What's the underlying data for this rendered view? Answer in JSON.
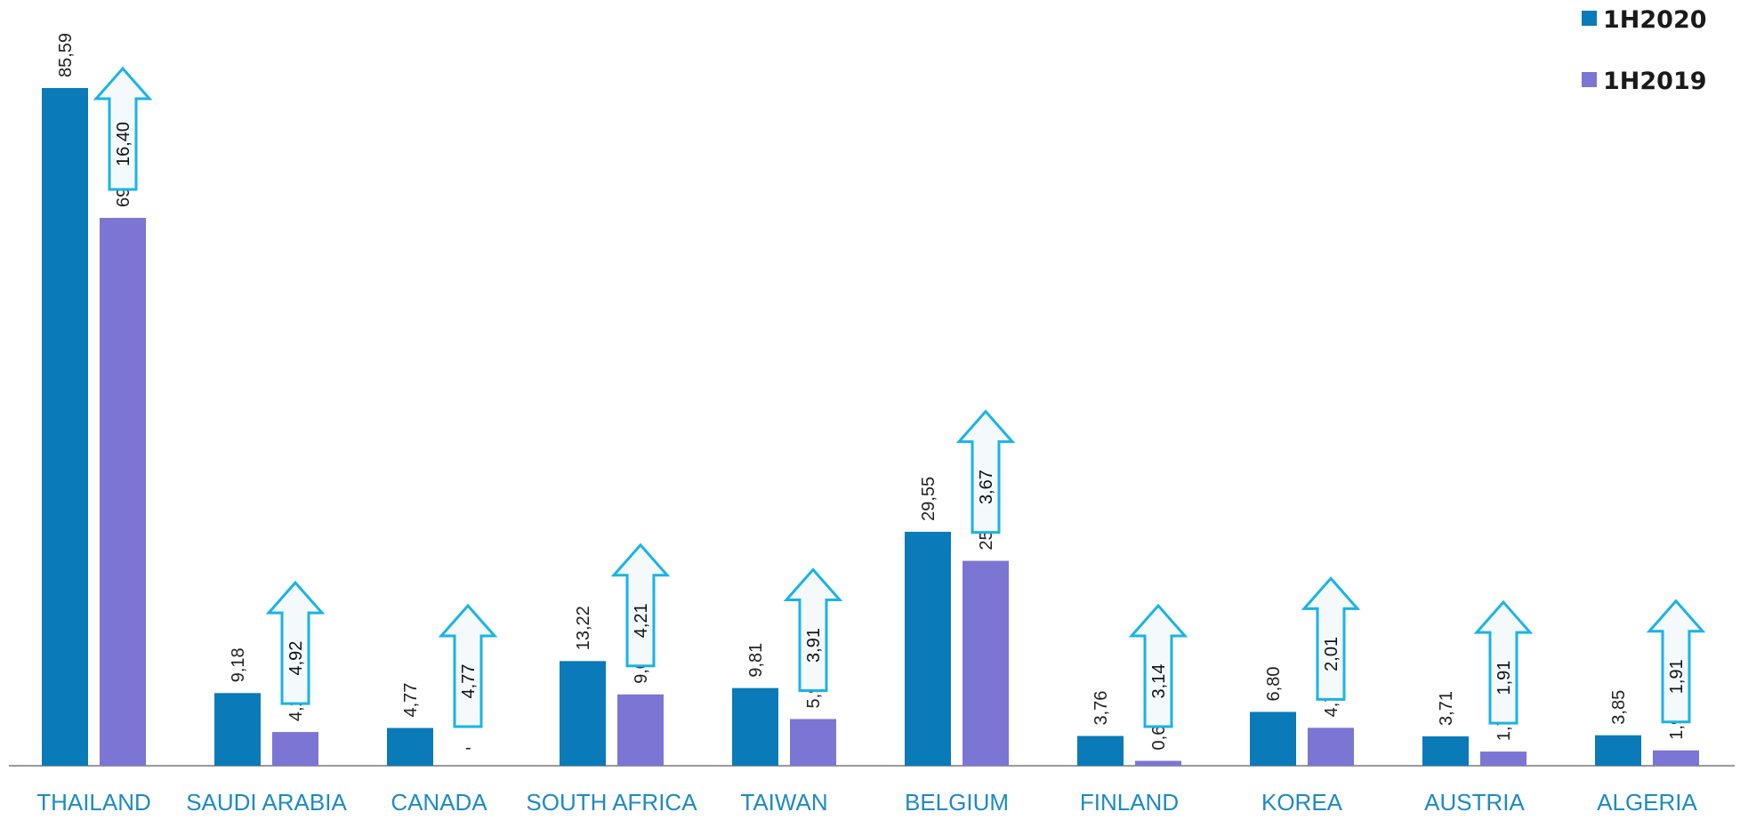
{
  "chart_data": {
    "type": "bar",
    "categories": [
      "THAILAND",
      "SAUDI ARABIA",
      "CANADA",
      "SOUTH AFRICA",
      "TAIWAN",
      "BELGIUM",
      "FINLAND",
      "KOREA",
      "AUSTRIA",
      "ALGERIA"
    ],
    "series": [
      {
        "name": "1H2020",
        "values": [
          85.59,
          9.18,
          4.77,
          13.22,
          9.81,
          29.55,
          3.76,
          6.8,
          3.71,
          3.85
        ],
        "labels": [
          "85,59",
          "9,18",
          "4,77",
          "13,22",
          "9,81",
          "29,55",
          "3,76",
          "6,80",
          "3,71",
          "3,85"
        ]
      },
      {
        "name": "1H2019",
        "values": [
          69.19,
          4.26,
          0,
          9.01,
          5.9,
          25.88,
          0.62,
          4.79,
          1.79,
          1.94
        ],
        "labels": [
          "69,19",
          "4,26",
          "-",
          "9,01",
          "5,90",
          "25,88",
          "0,62",
          "4,79",
          "1,79",
          "1,94"
        ]
      }
    ],
    "increase_labels": [
      "16,40",
      "4,92",
      "4,77",
      "4,21",
      "3,91",
      "3,67",
      "3,14",
      "2,01",
      "1,91",
      "1,91"
    ],
    "ylim": [
      0,
      90
    ],
    "title": "",
    "xlabel": "",
    "ylabel": "",
    "grid": false,
    "legend": "top-right",
    "colors": {
      "series_1": "#0A7AB8",
      "series_2": "#7B75D4",
      "category_text": "#1E8BC3",
      "axis": "#9A9A9A",
      "arrow_stroke": "#1AB3E6",
      "arrow_fill": "#F4FAFB"
    }
  }
}
